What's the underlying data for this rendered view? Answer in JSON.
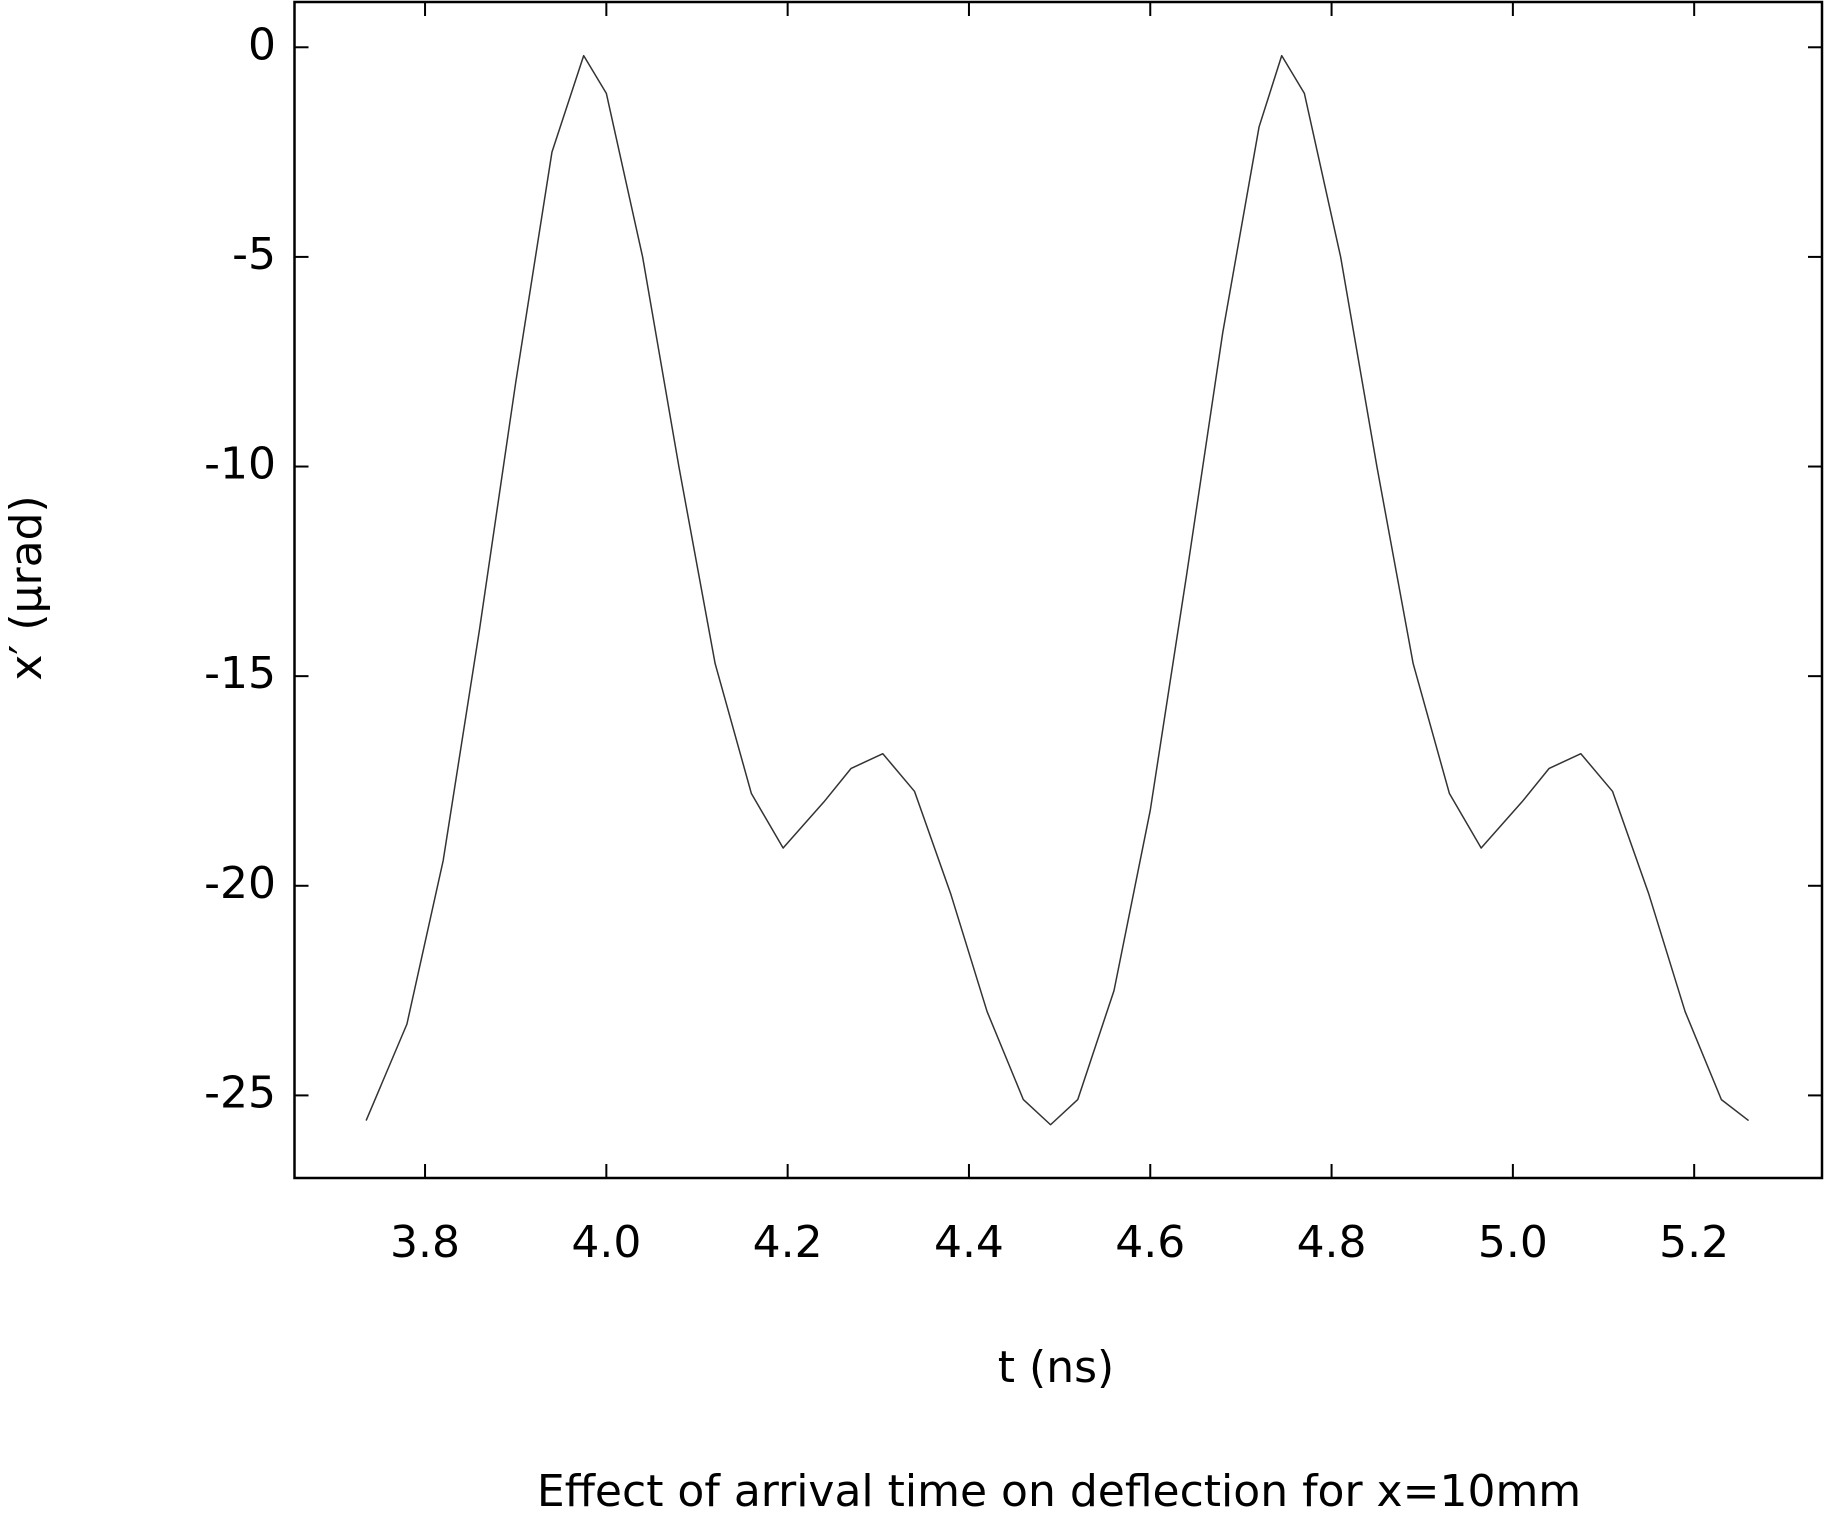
{
  "chart_data": {
    "type": "line",
    "title": "Effect of arrival time on deflection for x=10mm",
    "x_label": "t (ns)",
    "y_label": "x′ (μrad)",
    "x": [
      3.735,
      3.78,
      3.82,
      3.86,
      3.9,
      3.94,
      3.975,
      4.0,
      4.04,
      4.08,
      4.12,
      4.16,
      4.195,
      4.24,
      4.27,
      4.305,
      4.34,
      4.38,
      4.42,
      4.46,
      4.49,
      4.52,
      4.56,
      4.6,
      4.64,
      4.68,
      4.72,
      4.745,
      4.77,
      4.81,
      4.85,
      4.89,
      4.93,
      4.965,
      5.01,
      5.04,
      5.075,
      5.11,
      5.15,
      5.19,
      5.23,
      5.26
    ],
    "series": [
      {
        "color": "#333333",
        "values": [
          -25.6,
          -23.3,
          -19.4,
          -13.9,
          -8.0,
          -2.5,
          -0.2,
          -1.1,
          -5.0,
          -10.0,
          -14.7,
          -17.8,
          -19.1,
          -18.0,
          -17.2,
          -16.85,
          -17.75,
          -20.2,
          -23.0,
          -25.1,
          -25.7,
          -25.1,
          -22.5,
          -18.2,
          -12.6,
          -6.8,
          -1.9,
          -0.2,
          -1.1,
          -5.0,
          -10.0,
          -14.7,
          -17.8,
          -19.1,
          -18.0,
          -17.2,
          -16.85,
          -17.75,
          -20.2,
          -23.0,
          -25.1,
          -25.6
        ]
      }
    ],
    "xlim": [
      3.656,
      5.341
    ],
    "ylim": [
      -26.97,
      1.08
    ],
    "xticks": [
      3.8,
      {
        "value": 4,
        "label": "4.0"
      },
      4.2,
      4.4,
      4.6,
      4.8,
      {
        "value": 5,
        "label": "5.0"
      },
      5.2
    ],
    "yticks": [
      0,
      -5,
      -10,
      -15,
      -20,
      -25
    ],
    "grid": false
  }
}
